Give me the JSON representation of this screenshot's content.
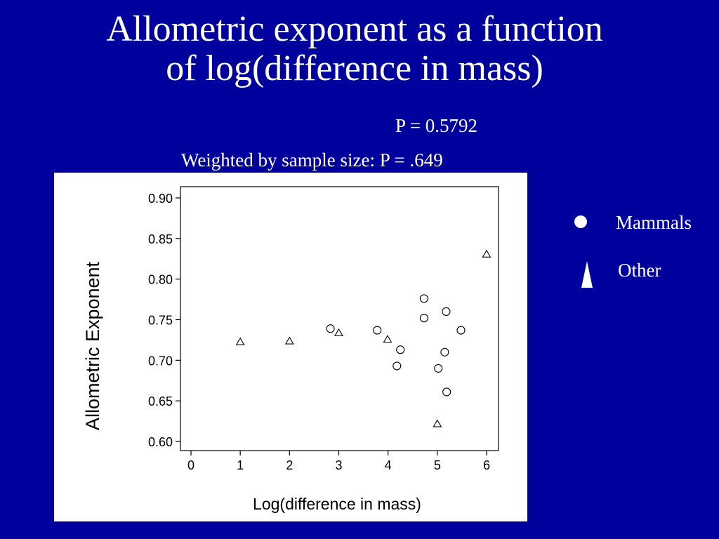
{
  "slide": {
    "title_line1": "Allometric exponent as a function",
    "title_line2": "of log(difference in mass)",
    "p_value": "P = 0.5792",
    "weighted_p": "Weighted by sample size: P = .649"
  },
  "legend": {
    "mammals": "Mammals",
    "other": "Other"
  },
  "colors": {
    "background": "#00009c",
    "panel": "#ffffff",
    "text": "#ffffff",
    "marker": "#000000"
  },
  "chart_data": {
    "type": "scatter",
    "xlabel": "Log(difference in mass)",
    "ylabel": "Allometric Exponent",
    "xlim": [
      0,
      6
    ],
    "ylim": [
      0.6,
      0.9
    ],
    "x_ticks": [
      "0",
      "1",
      "2",
      "3",
      "4",
      "5",
      "6"
    ],
    "y_ticks": [
      "0.60",
      "0.65",
      "0.70",
      "0.75",
      "0.80",
      "0.85",
      "0.90"
    ],
    "grid": false,
    "legend_position": "right-outside",
    "series": [
      {
        "name": "Mammals",
        "marker": "circle",
        "points": [
          {
            "x": 2.83,
            "y": 0.739
          },
          {
            "x": 3.78,
            "y": 0.737
          },
          {
            "x": 4.18,
            "y": 0.693
          },
          {
            "x": 4.25,
            "y": 0.713
          },
          {
            "x": 4.73,
            "y": 0.776
          },
          {
            "x": 4.73,
            "y": 0.752
          },
          {
            "x": 5.02,
            "y": 0.69
          },
          {
            "x": 5.15,
            "y": 0.71
          },
          {
            "x": 5.18,
            "y": 0.76
          },
          {
            "x": 5.19,
            "y": 0.661
          },
          {
            "x": 5.48,
            "y": 0.737
          }
        ]
      },
      {
        "name": "Other",
        "marker": "triangle",
        "points": [
          {
            "x": 1.0,
            "y": 0.723
          },
          {
            "x": 2.0,
            "y": 0.724
          },
          {
            "x": 3.0,
            "y": 0.734
          },
          {
            "x": 3.99,
            "y": 0.726
          },
          {
            "x": 5.0,
            "y": 0.622
          },
          {
            "x": 6.0,
            "y": 0.831
          }
        ]
      }
    ]
  }
}
